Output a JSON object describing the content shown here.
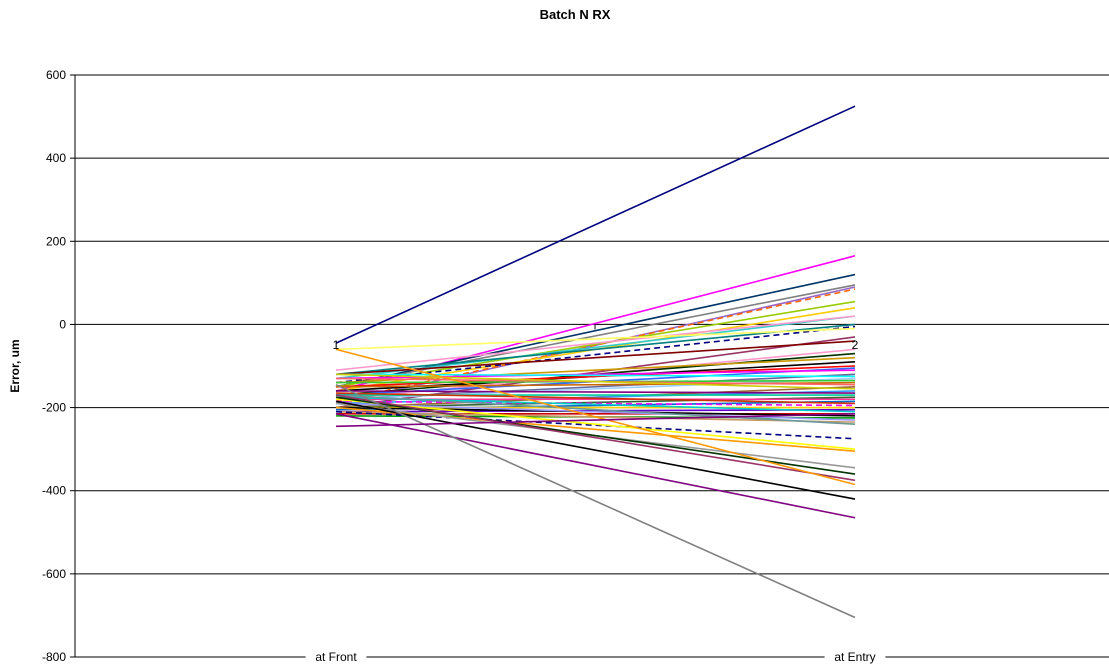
{
  "chart_data": {
    "type": "line",
    "title": "Batch N RX",
    "ylabel": "Error, um",
    "xlabel": "",
    "categories": [
      "at Front",
      "at Entry"
    ],
    "ylim": [
      -800,
      600
    ],
    "yticks": [
      600,
      400,
      200,
      0,
      -200,
      -400,
      -600,
      -800
    ],
    "grid": true,
    "point_labels": [
      "1",
      "2"
    ],
    "series": [
      {
        "color": "#000080",
        "values": [
          -45,
          525
        ]
      },
      {
        "color": "#ff00ff",
        "values": [
          -160,
          165
        ]
      },
      {
        "color": "#003366",
        "values": [
          -150,
          120
        ]
      },
      {
        "color": "#808080",
        "values": [
          -150,
          95
        ]
      },
      {
        "color": "#9966cc",
        "values": [
          -190,
          90
        ]
      },
      {
        "color": "#ff6600",
        "dash": true,
        "values": [
          -185,
          85
        ]
      },
      {
        "color": "#99cc00",
        "values": [
          -150,
          55
        ]
      },
      {
        "color": "#ffcc00",
        "values": [
          -160,
          40
        ]
      },
      {
        "color": "#33cccc",
        "values": [
          -130,
          20
        ]
      },
      {
        "color": "#ff99cc",
        "values": [
          -110,
          20
        ]
      },
      {
        "color": "#008080",
        "values": [
          -120,
          0
        ]
      },
      {
        "color": "#000080",
        "dash": true,
        "values": [
          -140,
          -5
        ]
      },
      {
        "color": "#ffff66",
        "values": [
          -60,
          -10
        ]
      },
      {
        "color": "#993366",
        "values": [
          -200,
          -30
        ]
      },
      {
        "color": "#800000",
        "values": [
          -120,
          -40
        ]
      },
      {
        "color": "#ff99cc",
        "values": [
          -180,
          -60
        ]
      },
      {
        "color": "#003300",
        "values": [
          -170,
          -70
        ]
      },
      {
        "color": "#cc9900",
        "values": [
          -140,
          -80
        ]
      },
      {
        "color": "#000000",
        "values": [
          -160,
          -90
        ]
      },
      {
        "color": "#ff0000",
        "values": [
          -150,
          -100
        ]
      },
      {
        "color": "#3366ff",
        "values": [
          -170,
          -105
        ]
      },
      {
        "color": "#ff00ff",
        "values": [
          -130,
          -110
        ]
      },
      {
        "color": "#666699",
        "values": [
          -180,
          -120
        ]
      },
      {
        "color": "#00ffff",
        "values": [
          -120,
          -125
        ]
      },
      {
        "color": "#99ccff",
        "values": [
          -180,
          -130
        ]
      },
      {
        "color": "#33cc33",
        "values": [
          -140,
          -135
        ]
      },
      {
        "color": "#cc6600",
        "values": [
          -150,
          -140
        ]
      },
      {
        "color": "#ff6666",
        "values": [
          -130,
          -145
        ]
      },
      {
        "color": "#996633",
        "values": [
          -200,
          -150
        ]
      },
      {
        "color": "#cccc00",
        "values": [
          -120,
          -155
        ]
      },
      {
        "color": "#3399ff",
        "values": [
          -190,
          -160
        ]
      },
      {
        "color": "#800080",
        "values": [
          -160,
          -165
        ]
      },
      {
        "color": "#00cc99",
        "values": [
          -170,
          -170
        ]
      },
      {
        "color": "#336633",
        "values": [
          -200,
          -175
        ]
      },
      {
        "color": "#ff3399",
        "values": [
          -180,
          -180
        ]
      },
      {
        "color": "#0066cc",
        "values": [
          -205,
          -185
        ]
      },
      {
        "color": "#cc3300",
        "values": [
          -165,
          -190
        ]
      },
      {
        "color": "#ff00ff",
        "dash": true,
        "values": [
          -185,
          -195
        ]
      },
      {
        "color": "#ffcc00",
        "values": [
          -200,
          -200
        ]
      },
      {
        "color": "#6600cc",
        "values": [
          -210,
          -205
        ]
      },
      {
        "color": "#00cccc",
        "values": [
          -175,
          -210
        ]
      },
      {
        "color": "#cc0000",
        "values": [
          -215,
          -215
        ]
      },
      {
        "color": "#000000",
        "values": [
          -200,
          -220
        ]
      },
      {
        "color": "#009900",
        "values": [
          -220,
          -225
        ]
      },
      {
        "color": "#9999ff",
        "values": [
          -190,
          -230
        ]
      },
      {
        "color": "#cc9966",
        "values": [
          -210,
          -235
        ]
      },
      {
        "color": "#669999",
        "values": [
          -170,
          -240
        ]
      },
      {
        "color": "#000080",
        "dash": true,
        "values": [
          -210,
          -275
        ]
      },
      {
        "color": "#ffff00",
        "values": [
          -180,
          -300
        ]
      },
      {
        "color": "#ff9900",
        "values": [
          -200,
          -305
        ]
      },
      {
        "color": "#999999",
        "values": [
          -190,
          -345
        ]
      },
      {
        "color": "#003300",
        "values": [
          -175,
          -360
        ]
      },
      {
        "color": "#993366",
        "values": [
          -170,
          -375
        ]
      },
      {
        "color": "#ff9900",
        "values": [
          -60,
          -385
        ]
      },
      {
        "color": "#000000",
        "values": [
          -185,
          -420
        ]
      },
      {
        "color": "#800080",
        "values": [
          -215,
          -465
        ]
      },
      {
        "color": "#808080",
        "values": [
          -145,
          -705
        ]
      },
      {
        "color": "#800080",
        "values": [
          -245,
          -215
        ]
      }
    ]
  }
}
